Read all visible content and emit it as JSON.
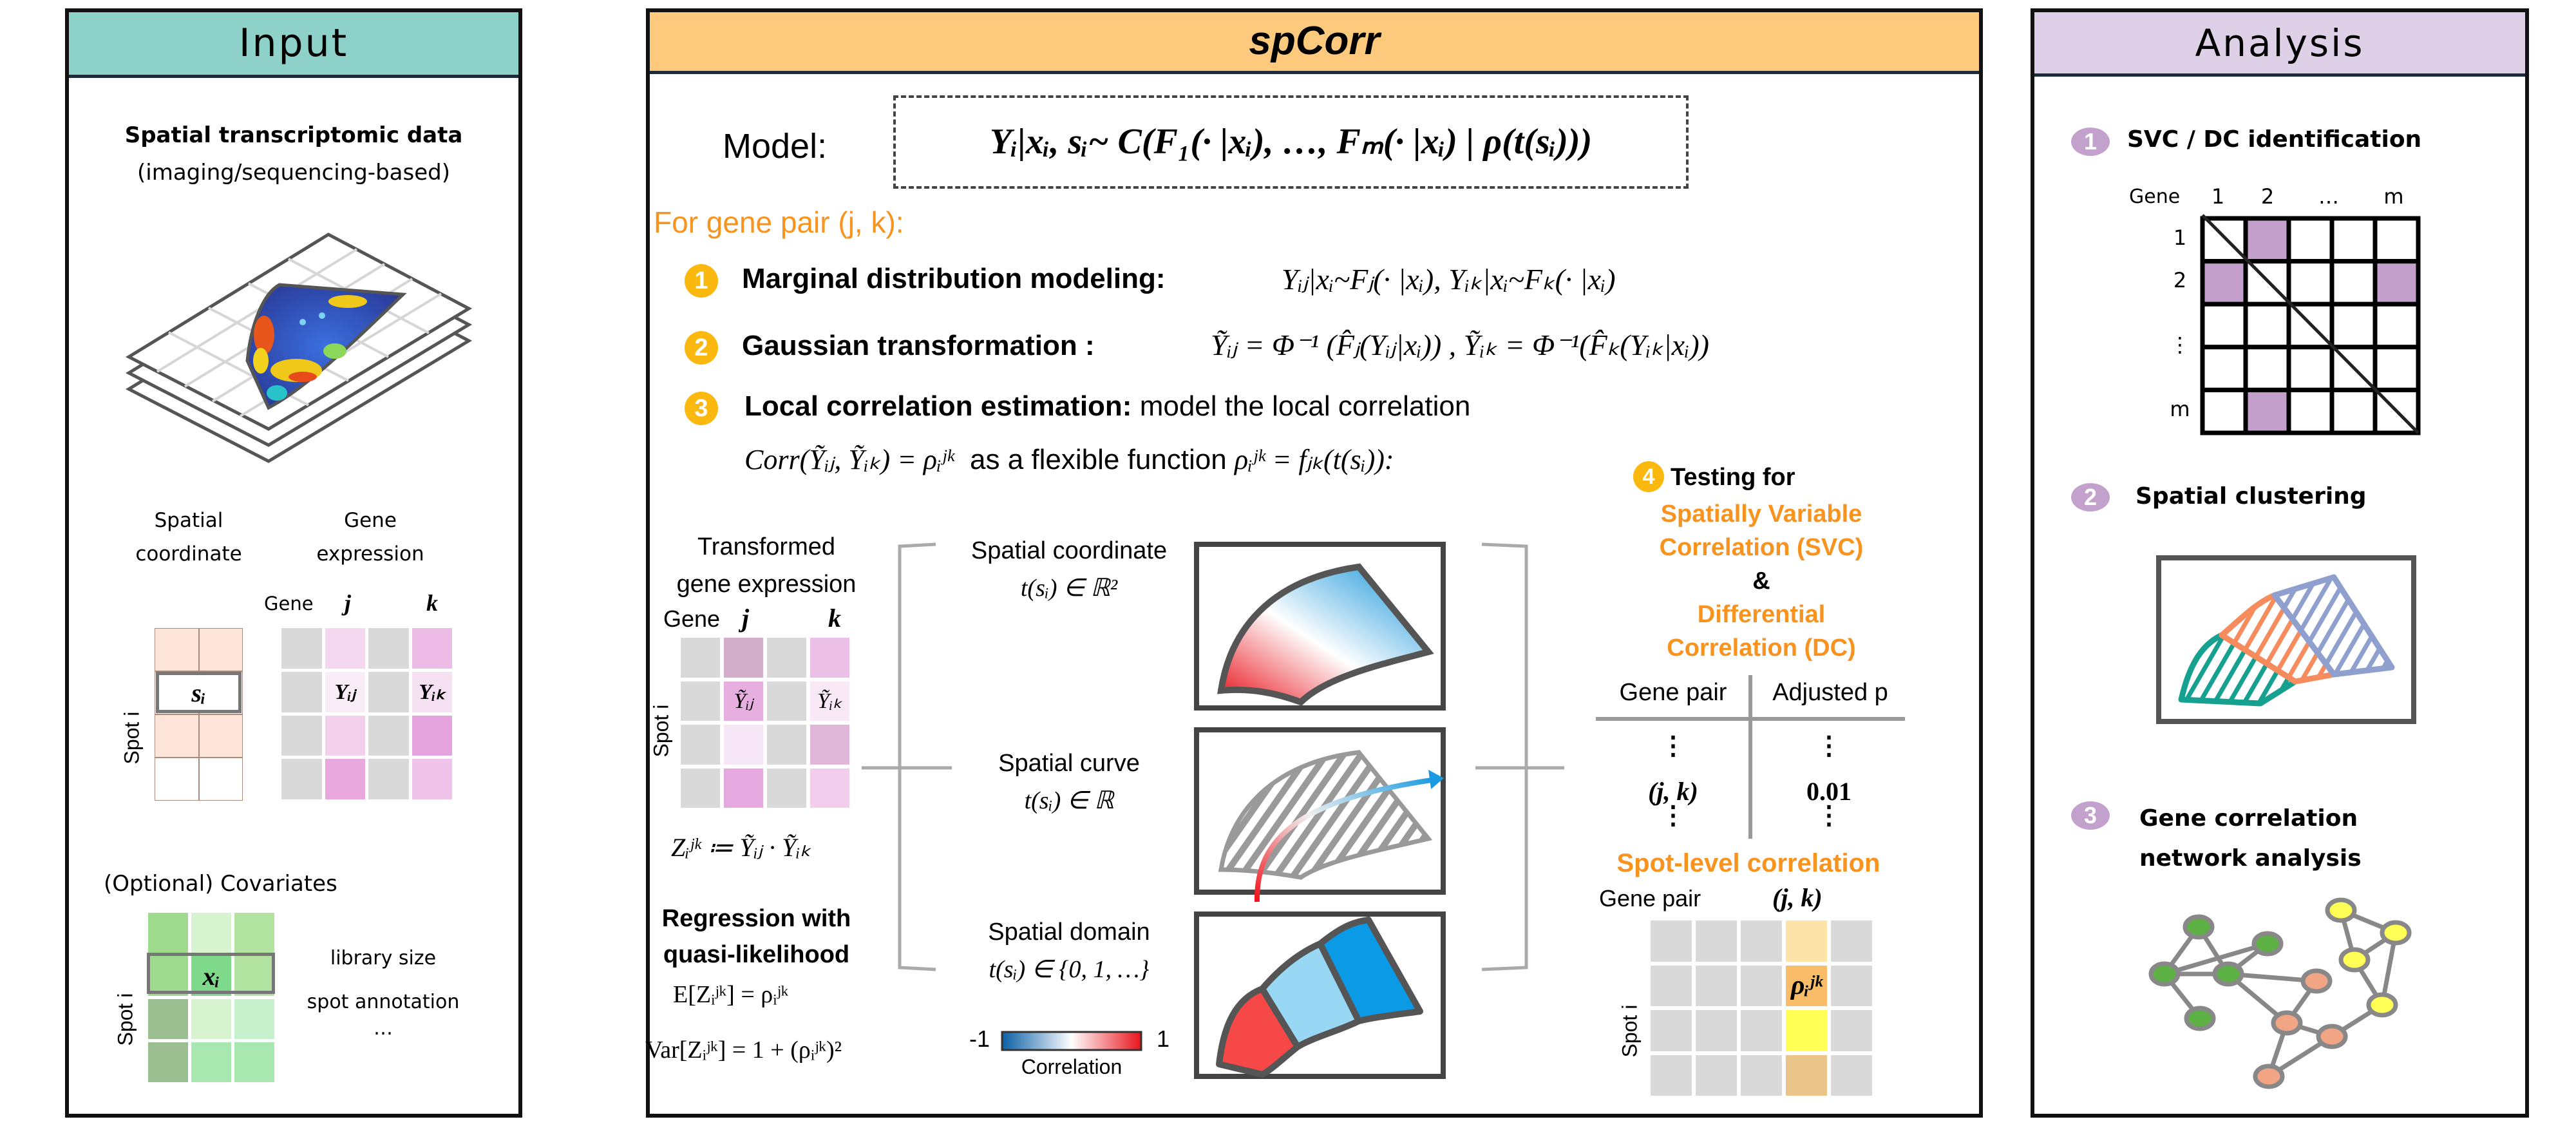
{
  "input": {
    "title": "Input",
    "data_title": "Spatial transcriptomic data",
    "data_subtitle": "(imaging/sequencing-based)",
    "spatial_label": [
      "Spatial",
      "coordinate"
    ],
    "gene_label": [
      "Gene",
      "expression"
    ],
    "gene_header": "Gene",
    "gene_j": "j",
    "gene_k": "k",
    "spot_label": "Spot i",
    "s_i": "sᵢ",
    "y_ij": "Yᵢⱼ",
    "y_ik": "Yᵢₖ",
    "covariates_title": "(Optional) Covariates",
    "x_i": "xᵢ",
    "covariates": [
      "library size",
      "spot annotation",
      "…"
    ]
  },
  "main": {
    "title": "spCorr",
    "model_label": "Model:",
    "model_formula": "Yᵢ|xᵢ, sᵢ~ C(F₁(· |xᵢ), …, Fₘ(· |xᵢ) | ρ(t(sᵢ)))",
    "gene_pair_heading": "For gene pair (j, k):",
    "steps": [
      {
        "num": "1",
        "title": "Marginal distribution modeling:",
        "formula": "Yᵢⱼ|xᵢ~Fⱼ(· |xᵢ), Yᵢₖ|xᵢ~Fₖ(· |xᵢ)"
      },
      {
        "num": "2",
        "title": "Gaussian transformation :",
        "formula": "Ỹᵢⱼ = Φ⁻¹ (F̂ⱼ(Yᵢⱼ|xᵢ)) , Ỹᵢₖ = Φ⁻¹(F̂ₖ(Yᵢₖ|xᵢ))"
      },
      {
        "num": "3",
        "title": "Local correlation estimation:",
        "desc": "model the local correlation",
        "formula_1": "Corr(Ỹᵢⱼ, Ỹᵢₖ) = ρᵢʲᵏ",
        "desc_2": "as a flexible function",
        "formula_2": "ρᵢʲᵏ = fⱼₖ(t(sᵢ)):"
      }
    ],
    "transformed": {
      "title": [
        "Transformed",
        "gene expression"
      ],
      "gene_header": "Gene",
      "gene_j": "j",
      "gene_k": "k",
      "spot_label": "Spot i",
      "y_ij": "Ỹᵢⱼ",
      "y_ik": "Ỹᵢₖ",
      "z_def": "Zᵢʲᵏ ≔ Ỹᵢⱼ · Ỹᵢₖ"
    },
    "regression": {
      "title": [
        "Regression with",
        "quasi-likelihood"
      ],
      "mean": "E[Zᵢʲᵏ] = ρᵢʲᵏ",
      "variance": "Var[Zᵢʲᵏ] = 1 + (ρᵢʲᵏ)²"
    },
    "spatial": [
      {
        "label": "Spatial coordinate",
        "formula": "t(sᵢ) ∈ ℝ²"
      },
      {
        "label": "Spatial curve",
        "formula": "t(sᵢ) ∈ ℝ"
      },
      {
        "label": "Spatial domain",
        "formula": "t(sᵢ) ∈ {0, 1, …}"
      }
    ],
    "colorbar": {
      "min": "-1",
      "max": "1",
      "label": "Correlation",
      "colors": [
        "#0b5fa5",
        "#ffffff",
        "#e8141c"
      ]
    },
    "testing": {
      "num": "4",
      "title": "Testing for",
      "svc": [
        "Spatially Variable",
        "Correlation (SVC)"
      ],
      "amp": "&",
      "dc": [
        "Differential",
        "Correlation (DC)"
      ],
      "table": {
        "headers": [
          "Gene pair",
          "Adjusted p"
        ],
        "rows": [
          [
            "⋮",
            "⋮"
          ],
          [
            "(j, k)",
            "0.01"
          ],
          [
            "⋮",
            "⋮"
          ]
        ]
      }
    },
    "spot_level": {
      "title": "Spot-level correlation",
      "gene_pair_label": "Gene pair",
      "pair": "(j, k)",
      "rho": "ρᵢʲᵏ",
      "spot_label": "Spot i"
    }
  },
  "analysis": {
    "title": "Analysis",
    "items": [
      {
        "num": "1",
        "title": "SVC / DC identification"
      },
      {
        "num": "2",
        "title": "Spatial clustering"
      },
      {
        "num": "3",
        "title": "Gene correlation",
        "title2": "network analysis"
      }
    ],
    "matrix": {
      "gene_label": "Gene",
      "col_labels": [
        "1",
        "2",
        "…",
        "m"
      ],
      "row_labels": [
        "1",
        "2",
        "⋮",
        "m"
      ]
    }
  },
  "colors": {
    "input_header": "#8dd1c8",
    "main_header": "#fdc97c",
    "analysis_header": "#ded0e6",
    "accent_orange": "#f7931e",
    "step_yellow": "#fbb80f",
    "analysis_purple": "#c3a1cd"
  }
}
